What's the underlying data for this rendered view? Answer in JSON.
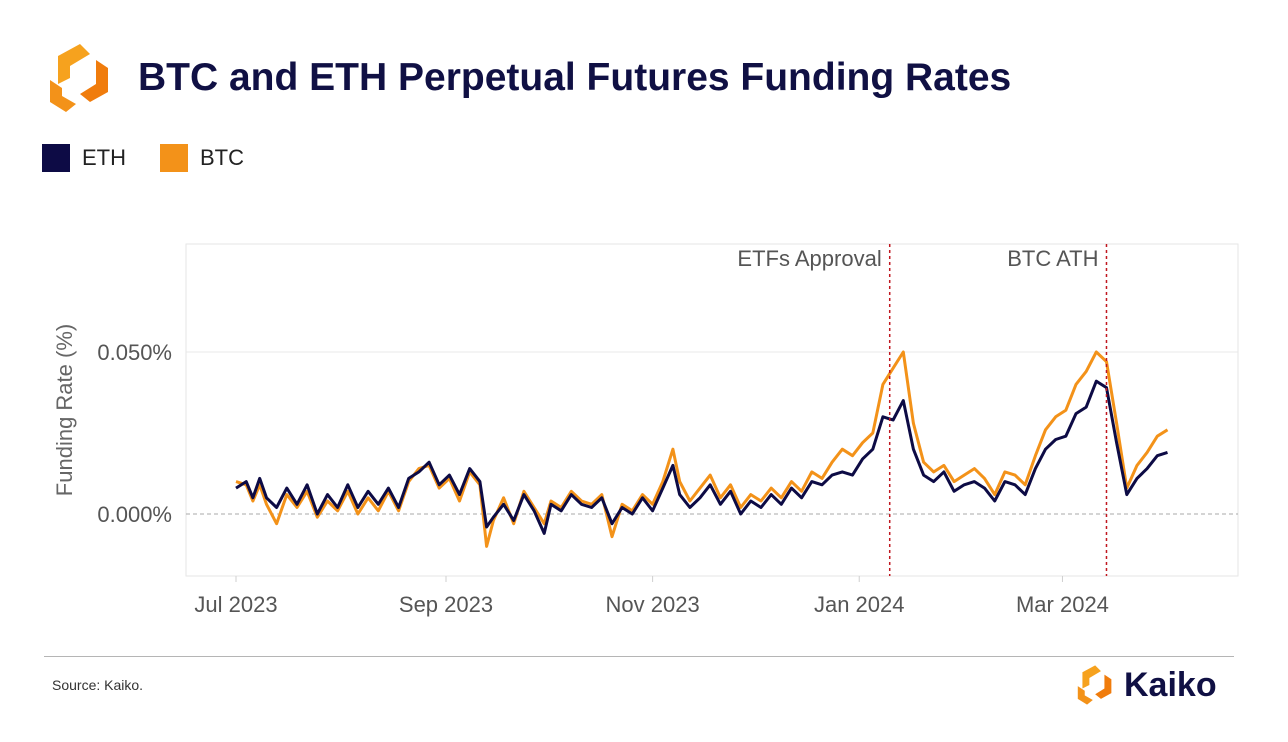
{
  "title": "BTC and ETH Perpetual Futures Funding Rates",
  "source": "Source: Kaiko.",
  "brand_name": "Kaiko",
  "colors": {
    "eth": "#0d0b45",
    "btc": "#f39219",
    "navy": "#101044",
    "annotation": "#c0171f"
  },
  "icons": {
    "header_logo": "kaiko-logo-icon",
    "footer_logo": "kaiko-logo-icon"
  },
  "chart_data": {
    "type": "line",
    "title": "BTC and ETH Perpetual Futures Funding Rates",
    "ylabel": "Funding Rate (%)",
    "xlabel": "",
    "x_start": "2023-07-01",
    "x_end": "2024-04-05",
    "ylim": [
      -0.02,
      0.083
    ],
    "yticks": [
      {
        "value": 0,
        "label": "0.000%"
      },
      {
        "value": 0.05,
        "label": "0.050%"
      }
    ],
    "xticks": [
      {
        "date": "2023-07-01",
        "label": "Jul 2023"
      },
      {
        "date": "2023-09-01",
        "label": "Sep 2023"
      },
      {
        "date": "2023-11-01",
        "label": "Nov 2023"
      },
      {
        "date": "2024-01-01",
        "label": "Jan 2024"
      },
      {
        "date": "2024-03-01",
        "label": "Mar 2024"
      }
    ],
    "grid": "horizontal",
    "legend": "top-left",
    "annotations": [
      {
        "date": "2024-01-10",
        "label": "ETFs Approval"
      },
      {
        "date": "2024-03-14",
        "label": "BTC ATH"
      }
    ],
    "series": [
      {
        "name": "ETH",
        "color": "#0d0b45",
        "points": [
          [
            "2023-07-01",
            0.008
          ],
          [
            "2023-07-04",
            0.01
          ],
          [
            "2023-07-06",
            0.005
          ],
          [
            "2023-07-08",
            0.011
          ],
          [
            "2023-07-10",
            0.005
          ],
          [
            "2023-07-13",
            0.002
          ],
          [
            "2023-07-16",
            0.008
          ],
          [
            "2023-07-19",
            0.003
          ],
          [
            "2023-07-22",
            0.009
          ],
          [
            "2023-07-25",
            0.0
          ],
          [
            "2023-07-28",
            0.006
          ],
          [
            "2023-07-31",
            0.002
          ],
          [
            "2023-08-03",
            0.009
          ],
          [
            "2023-08-06",
            0.002
          ],
          [
            "2023-08-09",
            0.007
          ],
          [
            "2023-08-12",
            0.003
          ],
          [
            "2023-08-15",
            0.008
          ],
          [
            "2023-08-18",
            0.002
          ],
          [
            "2023-08-21",
            0.011
          ],
          [
            "2023-08-24",
            0.013
          ],
          [
            "2023-08-27",
            0.016
          ],
          [
            "2023-08-30",
            0.009
          ],
          [
            "2023-09-02",
            0.012
          ],
          [
            "2023-09-05",
            0.006
          ],
          [
            "2023-09-08",
            0.014
          ],
          [
            "2023-09-11",
            0.01
          ],
          [
            "2023-09-13",
            -0.004
          ],
          [
            "2023-09-15",
            -0.001
          ],
          [
            "2023-09-18",
            0.003
          ],
          [
            "2023-09-21",
            -0.002
          ],
          [
            "2023-09-24",
            0.006
          ],
          [
            "2023-09-27",
            0.001
          ],
          [
            "2023-09-30",
            -0.006
          ],
          [
            "2023-10-02",
            0.003
          ],
          [
            "2023-10-05",
            0.001
          ],
          [
            "2023-10-08",
            0.006
          ],
          [
            "2023-10-11",
            0.003
          ],
          [
            "2023-10-14",
            0.002
          ],
          [
            "2023-10-17",
            0.005
          ],
          [
            "2023-10-20",
            -0.003
          ],
          [
            "2023-10-23",
            0.002
          ],
          [
            "2023-10-26",
            0.0
          ],
          [
            "2023-10-29",
            0.005
          ],
          [
            "2023-11-01",
            0.001
          ],
          [
            "2023-11-04",
            0.008
          ],
          [
            "2023-11-07",
            0.015
          ],
          [
            "2023-11-09",
            0.006
          ],
          [
            "2023-11-12",
            0.002
          ],
          [
            "2023-11-15",
            0.005
          ],
          [
            "2023-11-18",
            0.009
          ],
          [
            "2023-11-21",
            0.003
          ],
          [
            "2023-11-24",
            0.007
          ],
          [
            "2023-11-27",
            0.0
          ],
          [
            "2023-11-30",
            0.004
          ],
          [
            "2023-12-03",
            0.002
          ],
          [
            "2023-12-06",
            0.006
          ],
          [
            "2023-12-09",
            0.003
          ],
          [
            "2023-12-12",
            0.008
          ],
          [
            "2023-12-15",
            0.005
          ],
          [
            "2023-12-18",
            0.01
          ],
          [
            "2023-12-21",
            0.009
          ],
          [
            "2023-12-24",
            0.012
          ],
          [
            "2023-12-27",
            0.013
          ],
          [
            "2023-12-30",
            0.012
          ],
          [
            "2024-01-02",
            0.017
          ],
          [
            "2024-01-05",
            0.02
          ],
          [
            "2024-01-08",
            0.03
          ],
          [
            "2024-01-11",
            0.029
          ],
          [
            "2024-01-14",
            0.035
          ],
          [
            "2024-01-17",
            0.02
          ],
          [
            "2024-01-20",
            0.012
          ],
          [
            "2024-01-23",
            0.01
          ],
          [
            "2024-01-26",
            0.013
          ],
          [
            "2024-01-29",
            0.007
          ],
          [
            "2024-02-01",
            0.009
          ],
          [
            "2024-02-04",
            0.01
          ],
          [
            "2024-02-07",
            0.008
          ],
          [
            "2024-02-10",
            0.004
          ],
          [
            "2024-02-13",
            0.01
          ],
          [
            "2024-02-16",
            0.009
          ],
          [
            "2024-02-19",
            0.006
          ],
          [
            "2024-02-22",
            0.014
          ],
          [
            "2024-02-25",
            0.02
          ],
          [
            "2024-02-28",
            0.023
          ],
          [
            "2024-03-02",
            0.024
          ],
          [
            "2024-03-05",
            0.031
          ],
          [
            "2024-03-08",
            0.033
          ],
          [
            "2024-03-11",
            0.041
          ],
          [
            "2024-03-14",
            0.039
          ],
          [
            "2024-03-17",
            0.022
          ],
          [
            "2024-03-20",
            0.006
          ],
          [
            "2024-03-23",
            0.011
          ],
          [
            "2024-03-26",
            0.014
          ],
          [
            "2024-03-29",
            0.018
          ],
          [
            "2024-04-01",
            0.019
          ]
        ]
      },
      {
        "name": "BTC",
        "color": "#f39219",
        "points": [
          [
            "2023-07-01",
            0.01
          ],
          [
            "2023-07-04",
            0.009
          ],
          [
            "2023-07-06",
            0.004
          ],
          [
            "2023-07-08",
            0.009
          ],
          [
            "2023-07-10",
            0.003
          ],
          [
            "2023-07-13",
            -0.003
          ],
          [
            "2023-07-16",
            0.006
          ],
          [
            "2023-07-19",
            0.002
          ],
          [
            "2023-07-22",
            0.007
          ],
          [
            "2023-07-25",
            -0.001
          ],
          [
            "2023-07-28",
            0.004
          ],
          [
            "2023-07-31",
            0.001
          ],
          [
            "2023-08-03",
            0.007
          ],
          [
            "2023-08-06",
            0.0
          ],
          [
            "2023-08-09",
            0.005
          ],
          [
            "2023-08-12",
            0.001
          ],
          [
            "2023-08-15",
            0.007
          ],
          [
            "2023-08-18",
            0.001
          ],
          [
            "2023-08-21",
            0.01
          ],
          [
            "2023-08-24",
            0.014
          ],
          [
            "2023-08-27",
            0.015
          ],
          [
            "2023-08-30",
            0.008
          ],
          [
            "2023-09-02",
            0.011
          ],
          [
            "2023-09-05",
            0.004
          ],
          [
            "2023-09-08",
            0.013
          ],
          [
            "2023-09-11",
            0.009
          ],
          [
            "2023-09-13",
            -0.01
          ],
          [
            "2023-09-15",
            -0.002
          ],
          [
            "2023-09-18",
            0.005
          ],
          [
            "2023-09-21",
            -0.003
          ],
          [
            "2023-09-24",
            0.007
          ],
          [
            "2023-09-27",
            0.002
          ],
          [
            "2023-09-30",
            -0.003
          ],
          [
            "2023-10-02",
            0.004
          ],
          [
            "2023-10-05",
            0.002
          ],
          [
            "2023-10-08",
            0.007
          ],
          [
            "2023-10-11",
            0.004
          ],
          [
            "2023-10-14",
            0.003
          ],
          [
            "2023-10-17",
            0.006
          ],
          [
            "2023-10-20",
            -0.007
          ],
          [
            "2023-10-23",
            0.003
          ],
          [
            "2023-10-26",
            0.001
          ],
          [
            "2023-10-29",
            0.006
          ],
          [
            "2023-11-01",
            0.003
          ],
          [
            "2023-11-04",
            0.01
          ],
          [
            "2023-11-07",
            0.02
          ],
          [
            "2023-11-09",
            0.01
          ],
          [
            "2023-11-12",
            0.004
          ],
          [
            "2023-11-15",
            0.008
          ],
          [
            "2023-11-18",
            0.012
          ],
          [
            "2023-11-21",
            0.005
          ],
          [
            "2023-11-24",
            0.009
          ],
          [
            "2023-11-27",
            0.002
          ],
          [
            "2023-11-30",
            0.006
          ],
          [
            "2023-12-03",
            0.004
          ],
          [
            "2023-12-06",
            0.008
          ],
          [
            "2023-12-09",
            0.005
          ],
          [
            "2023-12-12",
            0.01
          ],
          [
            "2023-12-15",
            0.007
          ],
          [
            "2023-12-18",
            0.013
          ],
          [
            "2023-12-21",
            0.011
          ],
          [
            "2023-12-24",
            0.016
          ],
          [
            "2023-12-27",
            0.02
          ],
          [
            "2023-12-30",
            0.018
          ],
          [
            "2024-01-02",
            0.022
          ],
          [
            "2024-01-05",
            0.025
          ],
          [
            "2024-01-08",
            0.04
          ],
          [
            "2024-01-11",
            0.045
          ],
          [
            "2024-01-14",
            0.05
          ],
          [
            "2024-01-17",
            0.028
          ],
          [
            "2024-01-20",
            0.016
          ],
          [
            "2024-01-23",
            0.013
          ],
          [
            "2024-01-26",
            0.015
          ],
          [
            "2024-01-29",
            0.01
          ],
          [
            "2024-02-01",
            0.012
          ],
          [
            "2024-02-04",
            0.014
          ],
          [
            "2024-02-07",
            0.011
          ],
          [
            "2024-02-10",
            0.006
          ],
          [
            "2024-02-13",
            0.013
          ],
          [
            "2024-02-16",
            0.012
          ],
          [
            "2024-02-19",
            0.009
          ],
          [
            "2024-02-22",
            0.018
          ],
          [
            "2024-02-25",
            0.026
          ],
          [
            "2024-02-28",
            0.03
          ],
          [
            "2024-03-02",
            0.032
          ],
          [
            "2024-03-05",
            0.04
          ],
          [
            "2024-03-08",
            0.044
          ],
          [
            "2024-03-11",
            0.05
          ],
          [
            "2024-03-14",
            0.047
          ],
          [
            "2024-03-17",
            0.028
          ],
          [
            "2024-03-20",
            0.008
          ],
          [
            "2024-03-23",
            0.015
          ],
          [
            "2024-03-26",
            0.019
          ],
          [
            "2024-03-29",
            0.024
          ],
          [
            "2024-04-01",
            0.026
          ]
        ]
      }
    ]
  }
}
